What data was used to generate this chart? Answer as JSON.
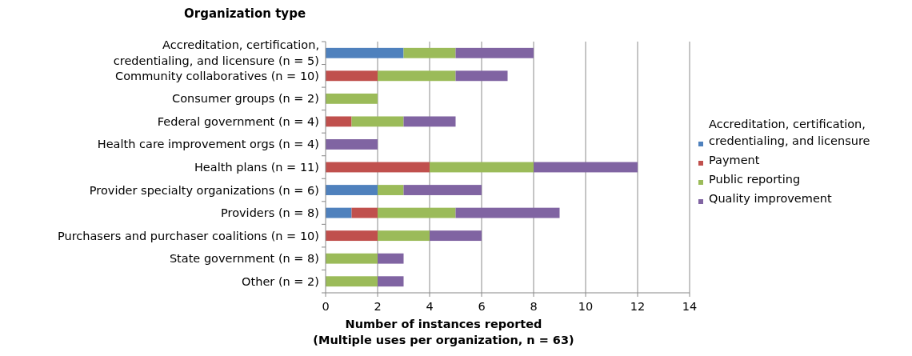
{
  "chart_data": {
    "type": "bar",
    "orientation": "horizontal",
    "stacked": true,
    "ylabel": "Organization type",
    "xlabel": "Number of instances reported (Multiple uses per organization, n = 63)",
    "categories": [
      "Accreditation, certification, credentialing, and licensure (n = 5)",
      "Community collaboratives (n = 10)",
      "Consumer groups (n = 2)",
      "Federal government (n = 4)",
      "Health care improvement orgs (n = 4)",
      "Health plans (n = 11)",
      "Provider specialty organizations (n = 6)",
      "Providers (n = 8)",
      "Purchasers and purchaser coalitions (n = 10)",
      "State government (n = 8)",
      "Other (n = 2)"
    ],
    "series": [
      {
        "name": "Accreditation, certification, credentialing, and licensure",
        "color": "#4f81bd",
        "values": [
          3,
          0,
          0,
          0,
          0,
          0,
          2,
          1,
          0,
          0,
          0
        ]
      },
      {
        "name": "Payment",
        "color": "#c0504d",
        "values": [
          0,
          2,
          0,
          1,
          0,
          4,
          0,
          1,
          2,
          0,
          0
        ]
      },
      {
        "name": "Public reporting",
        "color": "#9bbb59",
        "values": [
          2,
          3,
          2,
          2,
          0,
          4,
          1,
          3,
          2,
          2,
          2
        ]
      },
      {
        "name": "Quality improvement",
        "color": "#8064a2",
        "values": [
          3,
          2,
          0,
          2,
          2,
          4,
          3,
          4,
          2,
          1,
          1
        ]
      }
    ],
    "xlim": [
      0,
      14
    ],
    "xticks": [
      0,
      2,
      4,
      6,
      8,
      10,
      12,
      14
    ],
    "grid": "x",
    "legend": "right"
  }
}
